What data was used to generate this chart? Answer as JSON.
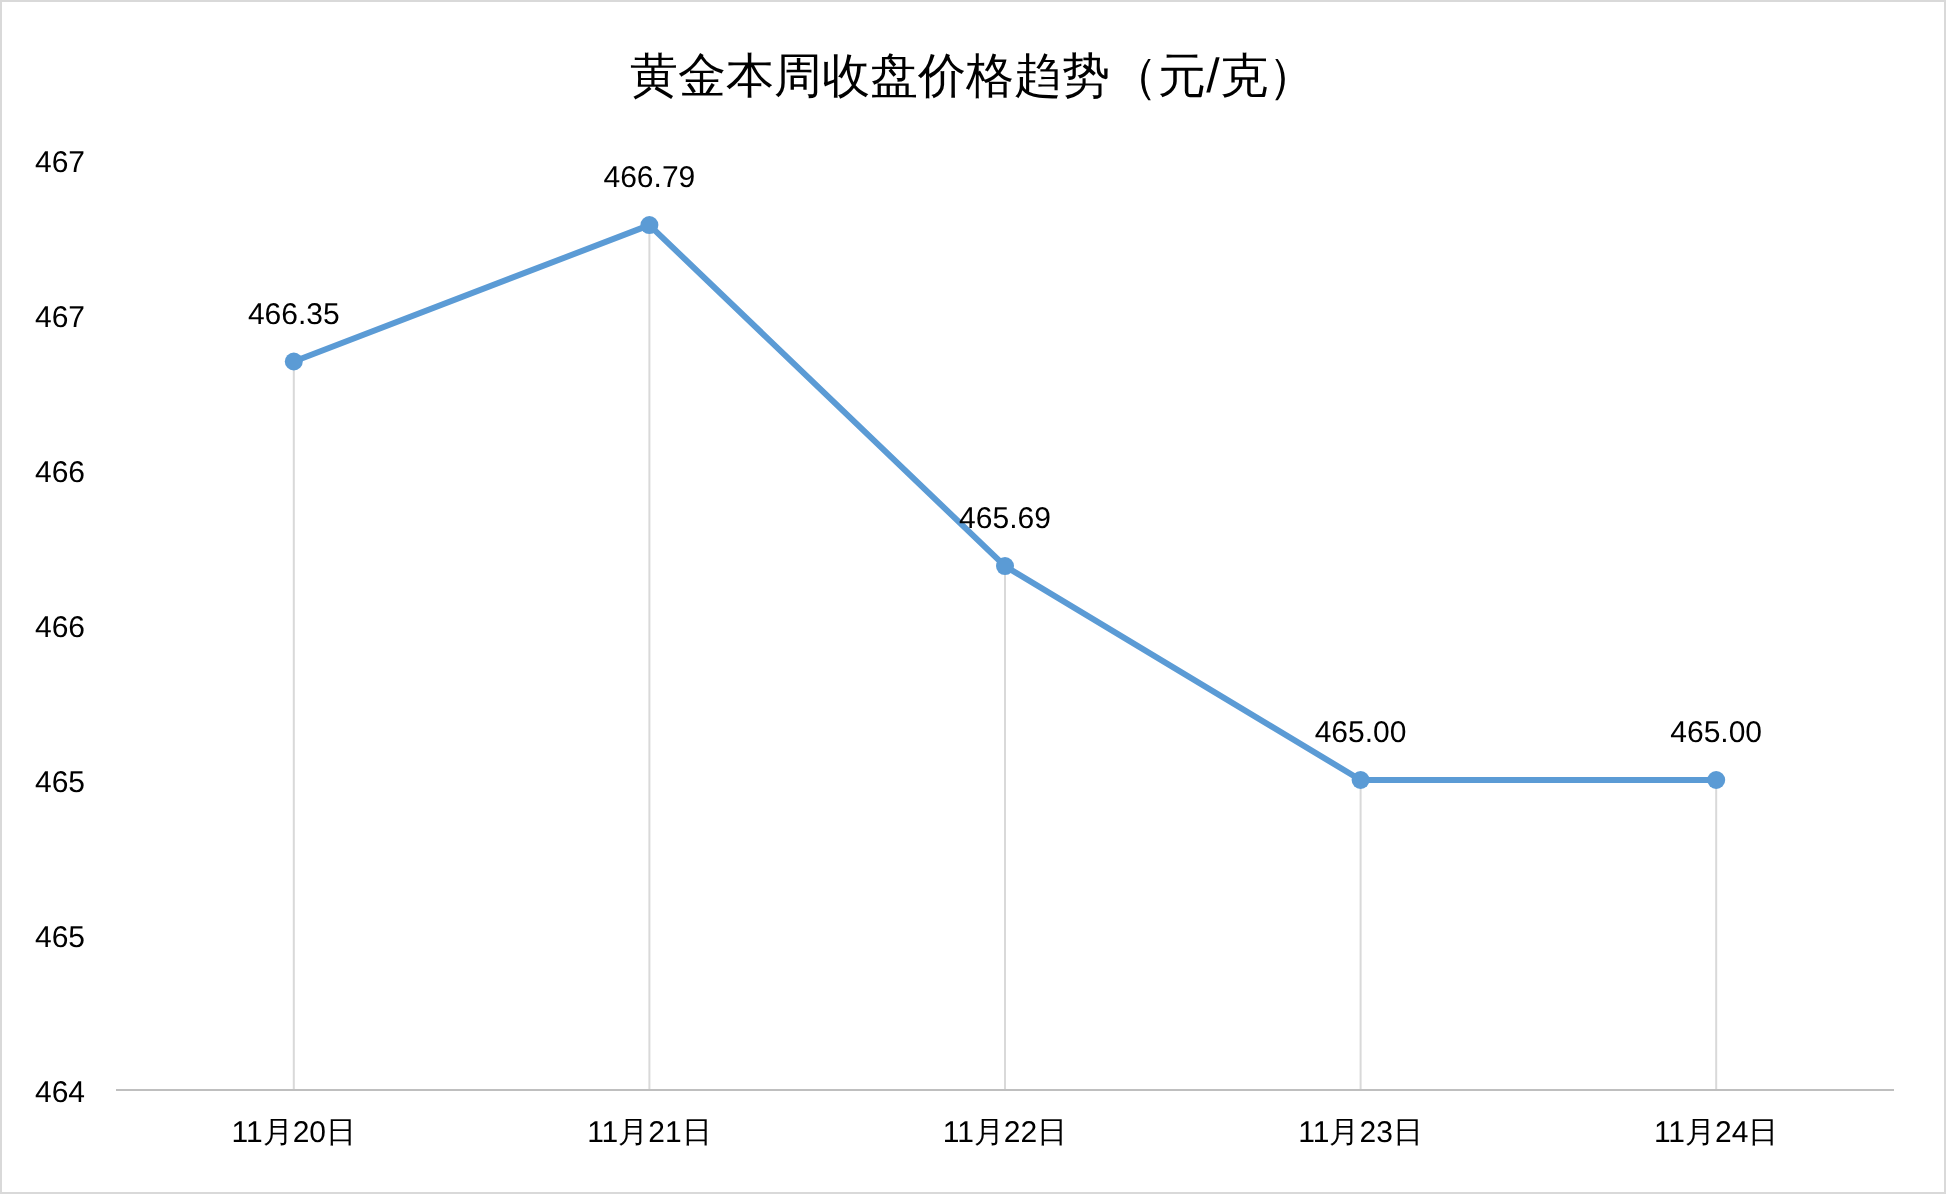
{
  "chart_data": {
    "type": "line",
    "title": "黄金本周收盘价格趋势（元/克）",
    "categories": [
      "11月20日",
      "11月21日",
      "11月22日",
      "11月23日",
      "11月24日"
    ],
    "series": [
      {
        "color": "#5b9bd5",
        "values": [
          466.35,
          466.79,
          465.69,
          465.0,
          465.0
        ],
        "value_labels": [
          "466.35",
          "466.79",
          "465.69",
          "465.00",
          "465.00"
        ]
      }
    ],
    "ylim": [
      464,
      467
    ],
    "yticks": [
      464,
      {
        "value": 464.5,
        "label": "465"
      },
      465,
      {
        "value": 465.5,
        "label": "466"
      },
      466,
      {
        "value": 466.5,
        "label": "467"
      },
      467
    ],
    "marker": "circle"
  }
}
